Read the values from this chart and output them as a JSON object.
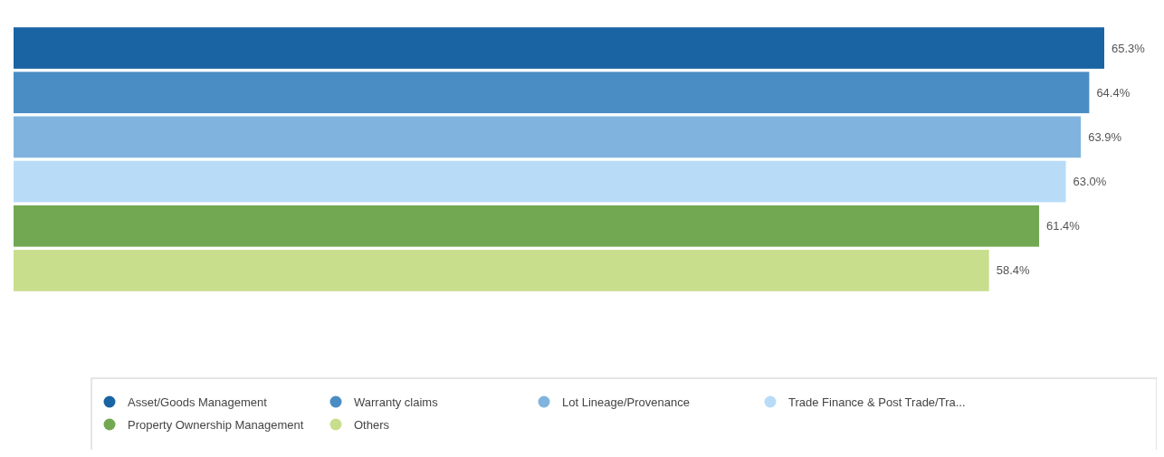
{
  "chart_data": {
    "type": "bar",
    "orientation": "horizontal",
    "categories": [
      null
    ],
    "legend": "bottom",
    "series": [
      {
        "name": "Asset/Goods Management",
        "color": "#1a64a4",
        "values": [
          65.3
        ],
        "value_labels": [
          "65.3%"
        ]
      },
      {
        "name": "Warranty claims",
        "color": "#4a8cc4",
        "values": [
          64.4
        ],
        "value_labels": [
          "64.4%"
        ]
      },
      {
        "name": "Lot Lineage/Provenance",
        "color": "#80b4de",
        "values": [
          63.9
        ],
        "value_labels": [
          "63.9%"
        ]
      },
      {
        "name": "Trade Finance & Post Trade/Tra...",
        "color": "#b8dcf8",
        "values": [
          63.0
        ],
        "value_labels": [
          "63.0%"
        ]
      },
      {
        "name": "Property Ownership Management",
        "color": "#72a852",
        "values": [
          61.4
        ],
        "value_labels": [
          "61.4%"
        ]
      },
      {
        "name": "Others",
        "color": "#c8de8c",
        "values": [
          58.4
        ],
        "value_labels": [
          "58.4%"
        ]
      }
    ]
  }
}
